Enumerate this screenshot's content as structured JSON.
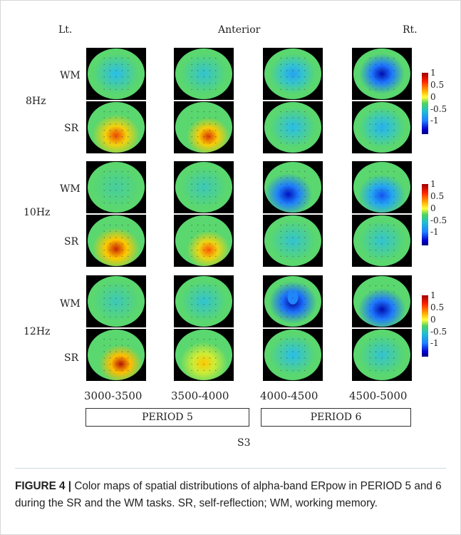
{
  "figure": {
    "top_labels": {
      "left": "Lt.",
      "center": "Anterior",
      "right": "Rt."
    },
    "rows": [
      {
        "band": "8Hz",
        "tasks": [
          "WM",
          "SR"
        ]
      },
      {
        "band": "10Hz",
        "tasks": [
          "WM",
          "SR"
        ]
      },
      {
        "band": "12Hz",
        "tasks": [
          "WM",
          "SR"
        ]
      }
    ],
    "time_windows": [
      "3000-3500",
      "3500-4000",
      "4000-4500",
      "4500-5000"
    ],
    "periods": [
      "PERIOD 5",
      "PERIOD 6"
    ],
    "subject": "S3",
    "colorbar_ticks": [
      "1",
      "0.5",
      "0",
      "-0.5",
      "-1"
    ],
    "maps": [
      [
        {
          "band": "8Hz",
          "task": "WM",
          "level": -0.25,
          "spot": "center"
        },
        {
          "band": "8Hz",
          "task": "WM",
          "level": -0.2,
          "spot": "center"
        },
        {
          "band": "8Hz",
          "task": "WM",
          "level": -0.35,
          "spot": "center"
        },
        {
          "band": "8Hz",
          "task": "WM",
          "level": -0.9,
          "spot": "center"
        }
      ],
      [
        {
          "band": "8Hz",
          "task": "SR",
          "level": 0.8,
          "spot": "bottom"
        },
        {
          "band": "8Hz",
          "task": "SR",
          "level": 0.85,
          "spot": "bottom-right"
        },
        {
          "band": "8Hz",
          "task": "SR",
          "level": -0.25,
          "spot": "center"
        },
        {
          "band": "8Hz",
          "task": "SR",
          "level": -0.3,
          "spot": "center"
        }
      ],
      [
        {
          "band": "10Hz",
          "task": "WM",
          "level": -0.1,
          "spot": "center"
        },
        {
          "band": "10Hz",
          "task": "WM",
          "level": -0.15,
          "spot": "center"
        },
        {
          "band": "10Hz",
          "task": "WM",
          "level": -0.85,
          "spot": "bottom-left"
        },
        {
          "band": "10Hz",
          "task": "WM",
          "level": -0.6,
          "spot": "bottom"
        }
      ],
      [
        {
          "band": "10Hz",
          "task": "SR",
          "level": 0.9,
          "spot": "bottom"
        },
        {
          "band": "10Hz",
          "task": "SR",
          "level": 0.75,
          "spot": "bottom-right"
        },
        {
          "band": "10Hz",
          "task": "SR",
          "level": -0.2,
          "spot": "center"
        },
        {
          "band": "10Hz",
          "task": "SR",
          "level": -0.2,
          "spot": "center"
        }
      ],
      [
        {
          "band": "12Hz",
          "task": "WM",
          "level": -0.15,
          "spot": "center"
        },
        {
          "band": "12Hz",
          "task": "WM",
          "level": -0.2,
          "spot": "center"
        },
        {
          "band": "12Hz",
          "task": "WM",
          "level": -0.95,
          "spot": "ring"
        },
        {
          "band": "12Hz",
          "task": "WM",
          "level": -0.9,
          "spot": "bottom"
        }
      ],
      [
        {
          "band": "12Hz",
          "task": "SR",
          "level": 0.95,
          "spot": "bottom-right"
        },
        {
          "band": "12Hz",
          "task": "SR",
          "level": 0.5,
          "spot": "bottom"
        },
        {
          "band": "12Hz",
          "task": "SR",
          "level": -0.25,
          "spot": "center"
        },
        {
          "band": "12Hz",
          "task": "SR",
          "level": -0.2,
          "spot": "center"
        }
      ]
    ]
  },
  "caption": {
    "label": "FIGURE 4 |",
    "text": " Color maps of spatial distributions of alpha-band ERpow in PERIOD 5 and 6 during the SR and the WM tasks. SR, self-reflection; WM, working memory."
  }
}
